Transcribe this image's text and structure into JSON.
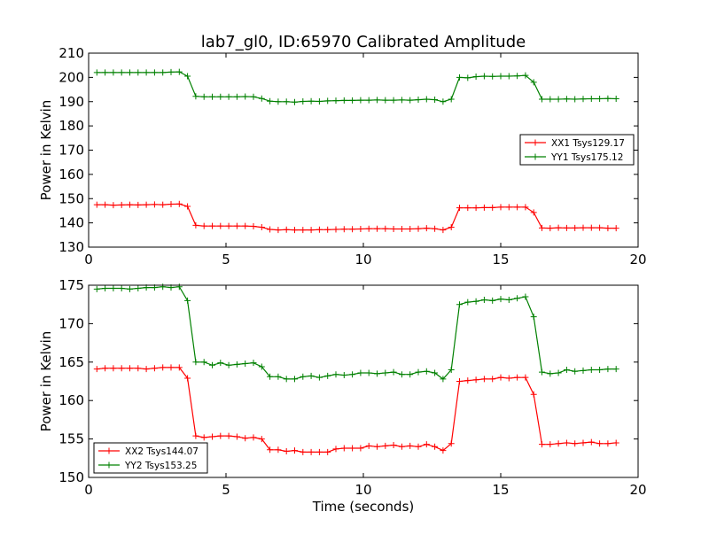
{
  "figure_title": "lab7_gl0, ID:65970 Calibrated Amplitude",
  "colors": {
    "red": "#ff0000",
    "green": "#008000"
  },
  "chart_data": [
    {
      "type": "line",
      "title": "lab7_gl0, ID:65970 Calibrated Amplitude",
      "xlabel": "",
      "ylabel": "Power in Kelvin",
      "xlim": [
        0,
        20
      ],
      "ylim": [
        130,
        210
      ],
      "xticks": [
        0,
        5,
        10,
        15,
        20
      ],
      "yticks": [
        130,
        140,
        150,
        160,
        170,
        180,
        190,
        200,
        210
      ],
      "grid": false,
      "legend_position": "right",
      "x": [
        0.3,
        0.6,
        0.9,
        1.2,
        1.5,
        1.8,
        2.1,
        2.4,
        2.7,
        3.0,
        3.3,
        3.6,
        3.9,
        4.2,
        4.5,
        4.8,
        5.1,
        5.4,
        5.7,
        6.0,
        6.3,
        6.6,
        6.9,
        7.2,
        7.5,
        7.8,
        8.1,
        8.4,
        8.7,
        9.0,
        9.3,
        9.6,
        9.9,
        10.2,
        10.5,
        10.8,
        11.1,
        11.4,
        11.7,
        12.0,
        12.3,
        12.6,
        12.9,
        13.2,
        13.5,
        13.8,
        14.1,
        14.4,
        14.7,
        15.0,
        15.3,
        15.6,
        15.9,
        16.2,
        16.5,
        16.8,
        17.1,
        17.4,
        17.7,
        18.0,
        18.3,
        18.6,
        18.9,
        19.2
      ],
      "series": [
        {
          "name": "XX1 Tsys129.17",
          "color": "#ff0000",
          "values": [
            147.5,
            147.5,
            147.3,
            147.4,
            147.5,
            147.4,
            147.5,
            147.6,
            147.5,
            147.7,
            147.8,
            146.8,
            139.0,
            138.7,
            138.7,
            138.7,
            138.7,
            138.7,
            138.7,
            138.6,
            138.2,
            137.3,
            137.1,
            137.2,
            137.1,
            137.1,
            137.1,
            137.2,
            137.2,
            137.3,
            137.4,
            137.4,
            137.5,
            137.6,
            137.6,
            137.6,
            137.5,
            137.5,
            137.5,
            137.6,
            137.8,
            137.6,
            137.1,
            138.2,
            146.2,
            146.2,
            146.2,
            146.3,
            146.3,
            146.5,
            146.5,
            146.5,
            146.5,
            144.3,
            137.9,
            137.8,
            138.0,
            137.9,
            137.9,
            138.0,
            138.0,
            138.0,
            137.8,
            137.8
          ]
        },
        {
          "name": "YY1 Tsys175.12",
          "color": "#008000",
          "values": [
            202.0,
            202.0,
            202.0,
            202.0,
            202.0,
            202.0,
            202.0,
            202.0,
            202.0,
            202.2,
            202.3,
            200.5,
            192.2,
            192.0,
            192.0,
            192.0,
            192.0,
            192.0,
            192.1,
            192.0,
            191.3,
            190.2,
            190.0,
            190.0,
            189.8,
            190.1,
            190.2,
            190.1,
            190.3,
            190.4,
            190.5,
            190.5,
            190.6,
            190.6,
            190.7,
            190.6,
            190.6,
            190.7,
            190.6,
            190.8,
            191.0,
            190.8,
            190.0,
            191.0,
            200.0,
            199.8,
            200.3,
            200.5,
            200.4,
            200.5,
            200.5,
            200.6,
            200.8,
            198.0,
            191.0,
            191.0,
            191.0,
            191.1,
            191.0,
            191.1,
            191.2,
            191.2,
            191.3,
            191.2
          ]
        }
      ]
    },
    {
      "type": "line",
      "title": "",
      "xlabel": "Time (seconds)",
      "ylabel": "Power in Kelvin",
      "xlim": [
        0,
        20
      ],
      "ylim": [
        150,
        175
      ],
      "xticks": [
        0,
        5,
        10,
        15,
        20
      ],
      "yticks": [
        150,
        155,
        160,
        165,
        170,
        175
      ],
      "grid": false,
      "legend_position": "lower-left",
      "x": [
        0.3,
        0.6,
        0.9,
        1.2,
        1.5,
        1.8,
        2.1,
        2.4,
        2.7,
        3.0,
        3.3,
        3.6,
        3.9,
        4.2,
        4.5,
        4.8,
        5.1,
        5.4,
        5.7,
        6.0,
        6.3,
        6.6,
        6.9,
        7.2,
        7.5,
        7.8,
        8.1,
        8.4,
        8.7,
        9.0,
        9.3,
        9.6,
        9.9,
        10.2,
        10.5,
        10.8,
        11.1,
        11.4,
        11.7,
        12.0,
        12.3,
        12.6,
        12.9,
        13.2,
        13.5,
        13.8,
        14.1,
        14.4,
        14.7,
        15.0,
        15.3,
        15.6,
        15.9,
        16.2,
        16.5,
        16.8,
        17.1,
        17.4,
        17.7,
        18.0,
        18.3,
        18.6,
        18.9,
        19.2
      ],
      "series": [
        {
          "name": "XX2 Tsys144.07",
          "color": "#ff0000",
          "values": [
            164.1,
            164.2,
            164.2,
            164.2,
            164.2,
            164.2,
            164.1,
            164.2,
            164.3,
            164.3,
            164.3,
            162.9,
            155.4,
            155.2,
            155.3,
            155.4,
            155.4,
            155.3,
            155.1,
            155.2,
            155.0,
            153.6,
            153.6,
            153.4,
            153.5,
            153.3,
            153.3,
            153.3,
            153.3,
            153.7,
            153.8,
            153.8,
            153.8,
            154.1,
            154.0,
            154.1,
            154.2,
            154.0,
            154.1,
            154.0,
            154.3,
            154.0,
            153.5,
            154.4,
            162.5,
            162.6,
            162.7,
            162.8,
            162.8,
            163.0,
            162.9,
            163.0,
            163.0,
            160.8,
            154.3,
            154.3,
            154.4,
            154.5,
            154.4,
            154.5,
            154.6,
            154.4,
            154.4,
            154.5
          ]
        },
        {
          "name": "YY2 Tsys153.25",
          "color": "#008000",
          "values": [
            174.5,
            174.6,
            174.6,
            174.6,
            174.5,
            174.6,
            174.7,
            174.7,
            174.8,
            174.7,
            174.8,
            173.0,
            165.0,
            165.0,
            164.6,
            164.9,
            164.6,
            164.7,
            164.8,
            164.9,
            164.4,
            163.1,
            163.1,
            162.8,
            162.8,
            163.1,
            163.2,
            163.0,
            163.2,
            163.4,
            163.3,
            163.4,
            163.6,
            163.6,
            163.5,
            163.6,
            163.7,
            163.4,
            163.4,
            163.7,
            163.8,
            163.6,
            162.8,
            164.0,
            172.5,
            172.8,
            172.9,
            173.1,
            173.0,
            173.2,
            173.1,
            173.3,
            173.5,
            170.9,
            163.7,
            163.5,
            163.6,
            164.0,
            163.8,
            163.9,
            164.0,
            164.0,
            164.1,
            164.1
          ]
        }
      ]
    }
  ]
}
